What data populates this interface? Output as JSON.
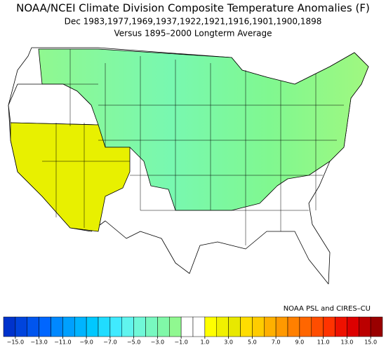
{
  "map": {
    "title": "NOAA/NCEI Climate Division Composite Temperature Anomalies (F)",
    "subtitle": "Dec   1983,1977,1969,1937,1922,1921,1916,1901,1900,1898",
    "baseline": "Versus 1895–2000 Longterm Average",
    "credit": "NOAA PSL and CIRES–CU",
    "colorbar": {
      "lim": [
        -16,
        16
      ],
      "colors": [
        "#0033cc",
        "#0044dd",
        "#0055ee",
        "#0066ff",
        "#0088ff",
        "#00a0ff",
        "#00b4ff",
        "#00c8ff",
        "#20dcff",
        "#40eaff",
        "#60f4ee",
        "#70f8d8",
        "#78f8c0",
        "#80f8a8",
        "#90f890",
        "#ffffff",
        "#ffffff",
        "#ffff00",
        "#f0f000",
        "#e8e800",
        "#ffdd00",
        "#ffcc00",
        "#ffb000",
        "#ff9900",
        "#ff8000",
        "#ff6600",
        "#ff4d00",
        "#ff3300",
        "#ee1100",
        "#dd0000",
        "#bb0000",
        "#990000"
      ],
      "ticks": [
        {
          "value": -15,
          "label": "−15.0"
        },
        {
          "value": -13,
          "label": "−13.0"
        },
        {
          "value": -11,
          "label": "−11.0"
        },
        {
          "value": -9,
          "label": "−9.0"
        },
        {
          "value": -7,
          "label": "−7.0"
        },
        {
          "value": -5,
          "label": "−5.0"
        },
        {
          "value": -3,
          "label": "−3.0"
        },
        {
          "value": -1,
          "label": "−1.0"
        },
        {
          "value": 1,
          "label": "1.0"
        },
        {
          "value": 3,
          "label": "3.0"
        },
        {
          "value": 5,
          "label": "5.0"
        },
        {
          "value": 7,
          "label": "7.0"
        },
        {
          "value": 9,
          "label": "9.0"
        },
        {
          "value": 11,
          "label": "11.0"
        },
        {
          "value": 13,
          "label": "13.0"
        },
        {
          "value": 15,
          "label": "15.0"
        }
      ]
    }
  }
}
